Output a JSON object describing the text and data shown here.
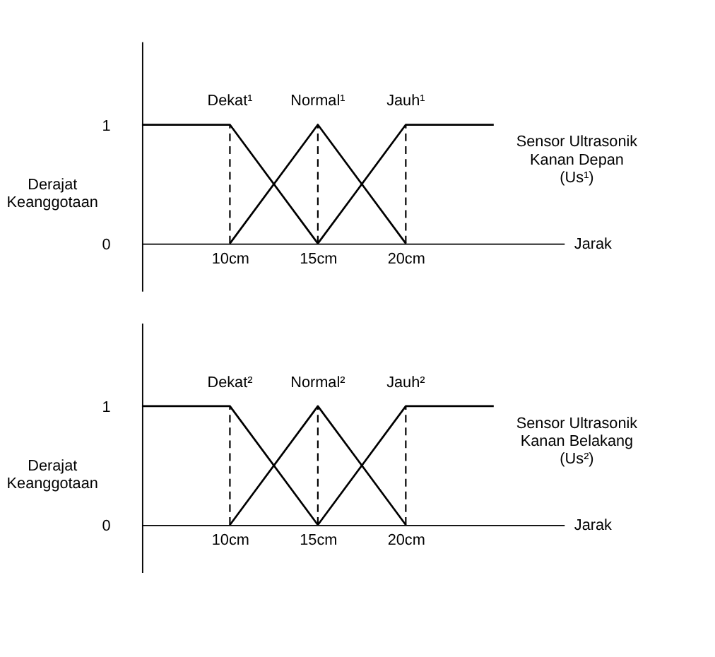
{
  "chart_data": [
    {
      "type": "line",
      "ylabel": "Derajat\nKeanggotaan",
      "xlabel": "Jarak",
      "annotations": [
        "Sensor Ultrasonik\nKanan Depan\n(Us¹)"
      ],
      "xlim": [
        5,
        29
      ],
      "ylim": [
        -0.4,
        1.7
      ],
      "xticks": [
        {
          "value": 10,
          "label": "10cm"
        },
        {
          "value": 15,
          "label": "15cm"
        },
        {
          "value": 20,
          "label": "20cm"
        }
      ],
      "yticks": [
        0,
        1
      ],
      "grid": false,
      "marker": "none",
      "line_style": "solid",
      "series": [
        {
          "name": "Dekat¹",
          "color": "#000000",
          "x": [
            5,
            10,
            15
          ],
          "values": [
            1,
            1,
            0
          ]
        },
        {
          "name": "Normal¹",
          "color": "#000000",
          "x": [
            10,
            15,
            20
          ],
          "values": [
            0,
            1,
            0
          ]
        },
        {
          "name": "Jauh¹",
          "color": "#000000",
          "x": [
            15,
            20,
            25
          ],
          "values": [
            0,
            1,
            1
          ]
        }
      ],
      "ref_lines": [
        {
          "axis": "x",
          "value": 10,
          "line_style": "dashed",
          "color": "#000000"
        },
        {
          "axis": "x",
          "value": 15,
          "line_style": "dashed",
          "color": "#000000"
        },
        {
          "axis": "x",
          "value": 20,
          "line_style": "dashed",
          "color": "#000000"
        }
      ]
    },
    {
      "type": "line",
      "ylabel": "Derajat\nKeanggotaan",
      "xlabel": "Jarak",
      "annotations": [
        "Sensor Ultrasonik\nKanan Belakang\n(Us²)"
      ],
      "xlim": [
        5,
        29
      ],
      "ylim": [
        -0.4,
        1.7
      ],
      "xticks": [
        {
          "value": 10,
          "label": "10cm"
        },
        {
          "value": 15,
          "label": "15cm"
        },
        {
          "value": 20,
          "label": "20cm"
        }
      ],
      "yticks": [
        0,
        1
      ],
      "grid": false,
      "marker": "none",
      "line_style": "solid",
      "series": [
        {
          "name": "Dekat²",
          "color": "#000000",
          "x": [
            5,
            10,
            15
          ],
          "values": [
            1,
            1,
            0
          ]
        },
        {
          "name": "Normal²",
          "color": "#000000",
          "x": [
            10,
            15,
            20
          ],
          "values": [
            0,
            1,
            0
          ]
        },
        {
          "name": "Jauh²",
          "color": "#000000",
          "x": [
            15,
            20,
            25
          ],
          "values": [
            0,
            1,
            1
          ]
        }
      ],
      "ref_lines": [
        {
          "axis": "x",
          "value": 10,
          "line_style": "dashed",
          "color": "#000000"
        },
        {
          "axis": "x",
          "value": 15,
          "line_style": "dashed",
          "color": "#000000"
        },
        {
          "axis": "x",
          "value": 20,
          "line_style": "dashed",
          "color": "#000000"
        }
      ]
    }
  ]
}
